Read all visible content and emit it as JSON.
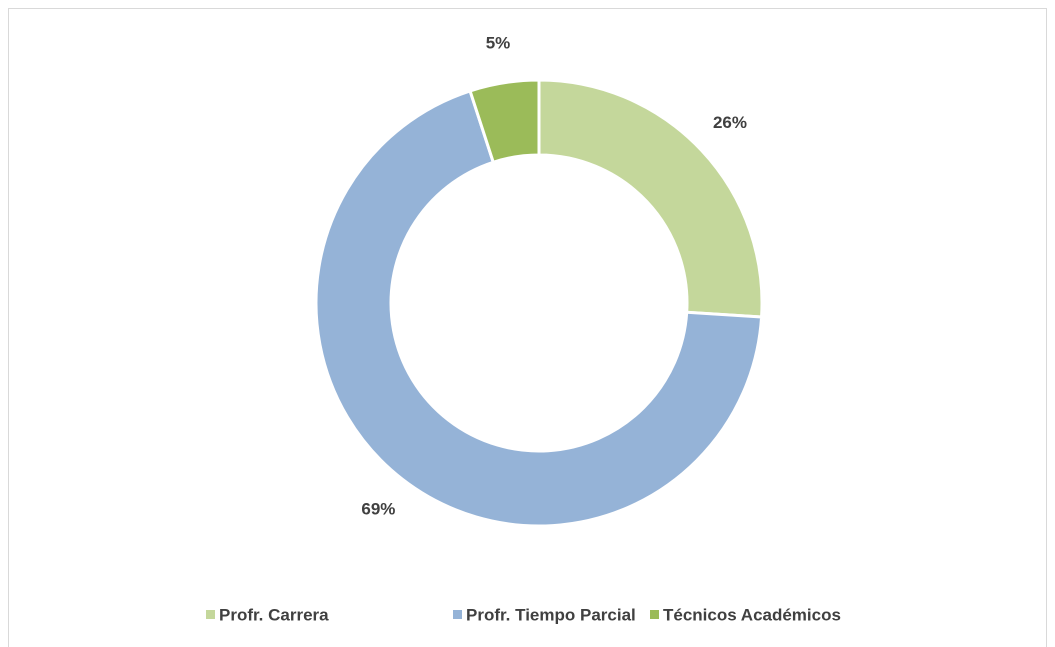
{
  "chart_data": {
    "type": "donut",
    "categories": [
      "Profr. Carrera",
      "Profr. Tiempo Parcial",
      "Técnicos Académicos"
    ],
    "values": [
      26,
      69,
      5
    ],
    "value_labels": [
      "26%",
      "69%",
      "5%"
    ],
    "colors": [
      "#c4d79b",
      "#95b3d7",
      "#9bbb59"
    ],
    "legend": "bottom"
  }
}
